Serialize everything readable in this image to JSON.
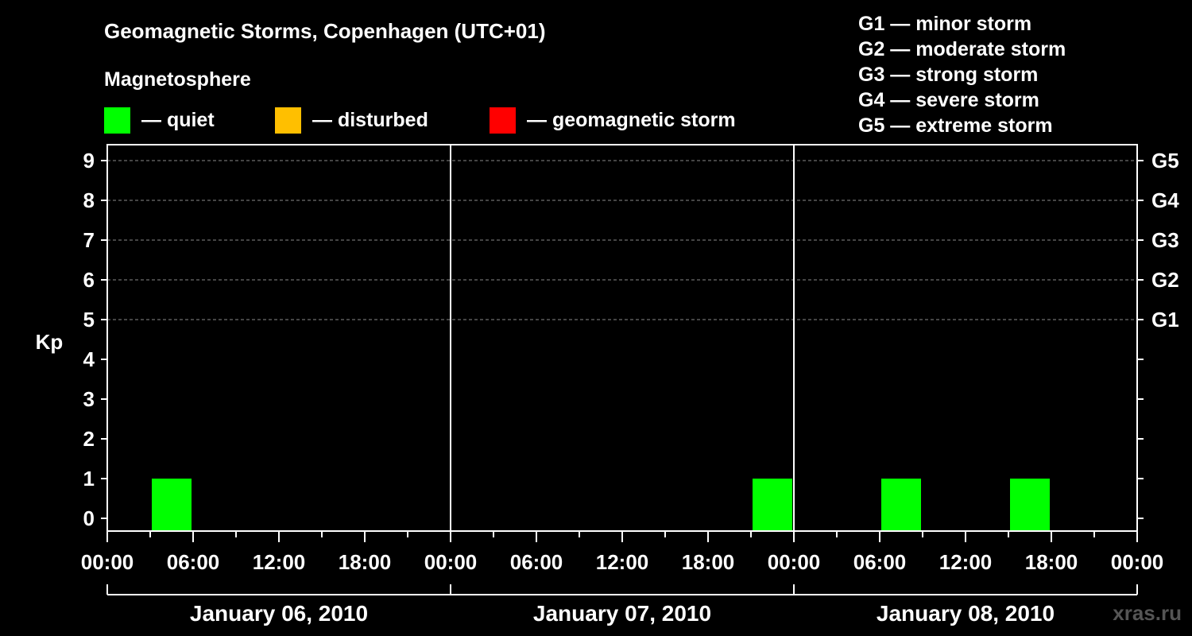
{
  "title": "Geomagnetic Storms, Copenhagen (UTC+01)",
  "magnetosphere_label": "Magnetosphere",
  "legend": [
    {
      "label": "— quiet",
      "color": "#00ff00"
    },
    {
      "label": "— disturbed",
      "color": "#ffbf00"
    },
    {
      "label": "— geomagnetic storm",
      "color": "#ff0000"
    }
  ],
  "storm_levels": [
    "G1 — minor storm",
    "G2 — moderate storm",
    "G3 — strong storm",
    "G4 — severe storm",
    "G5 — extreme storm"
  ],
  "watermark": "xras.ru",
  "chart_data": {
    "type": "bar",
    "ylabel": "Kp",
    "ylim": [
      0,
      9
    ],
    "y_ticks": [
      "0",
      "1",
      "2",
      "3",
      "4",
      "5",
      "6",
      "7",
      "8",
      "9"
    ],
    "right_ticks": [
      {
        "kp": 5,
        "label": "G1"
      },
      {
        "kp": 6,
        "label": "G2"
      },
      {
        "kp": 7,
        "label": "G3"
      },
      {
        "kp": 8,
        "label": "G4"
      },
      {
        "kp": 9,
        "label": "G5"
      }
    ],
    "grid_dashed_at": [
      5,
      6,
      7,
      8,
      9
    ],
    "x_tick_labels": [
      "00:00",
      "06:00",
      "12:00",
      "18:00",
      "00:00",
      "06:00",
      "12:00",
      "18:00",
      "00:00",
      "06:00",
      "12:00",
      "18:00",
      "00:00"
    ],
    "days": [
      "January 06, 2010",
      "January 07, 2010",
      "January 08, 2010"
    ],
    "interval_hours": 3,
    "bars": [
      {
        "time": "2010-01-06 03:00-06:00",
        "start_hour": 3,
        "kp": 1,
        "level": "quiet"
      },
      {
        "time": "2010-01-07 21:00-24:00",
        "start_hour": 45,
        "kp": 1,
        "level": "quiet"
      },
      {
        "time": "2010-01-08 06:00-09:00",
        "start_hour": 54,
        "kp": 1,
        "level": "quiet"
      },
      {
        "time": "2010-01-08 15:00-18:00",
        "start_hour": 63,
        "kp": 1,
        "level": "quiet"
      }
    ]
  }
}
